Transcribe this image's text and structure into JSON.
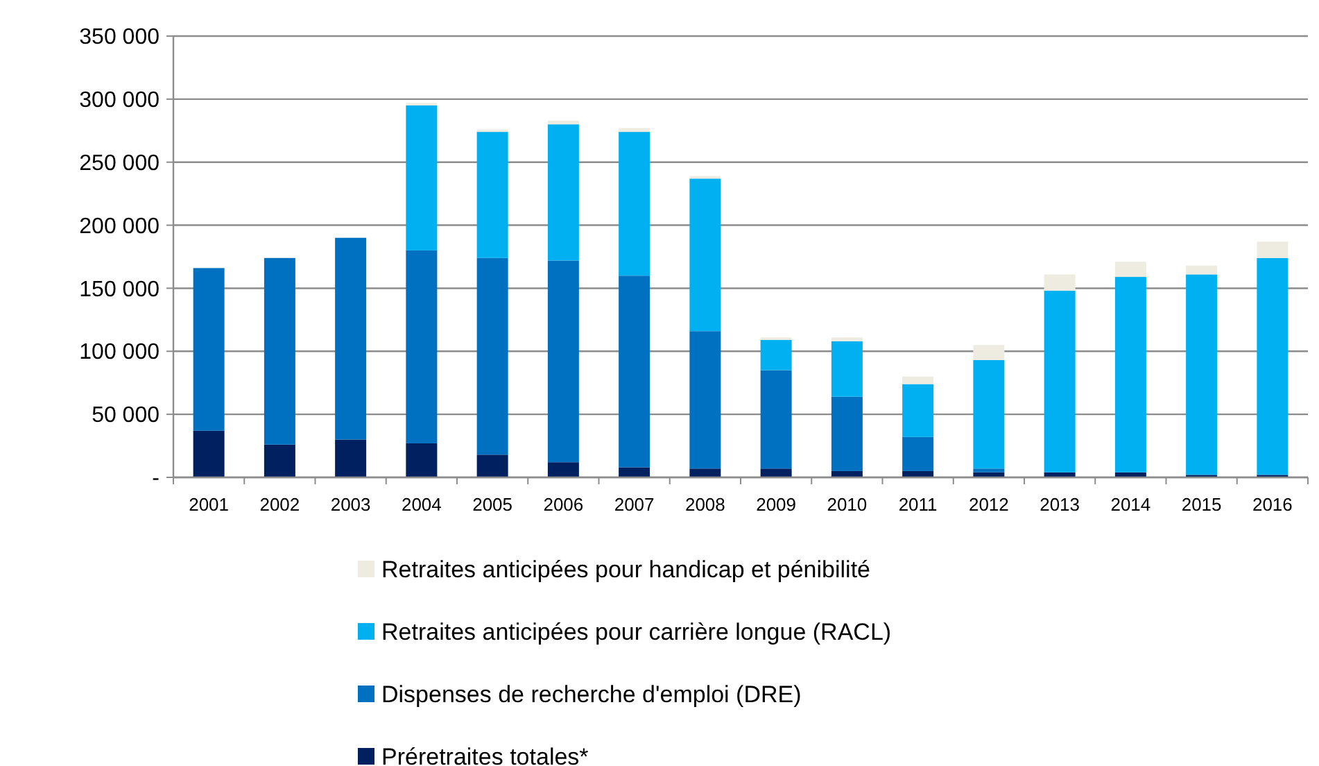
{
  "chart_data": {
    "type": "bar",
    "stacked": true,
    "categories": [
      "2001",
      "2002",
      "2003",
      "2004",
      "2005",
      "2006",
      "2007",
      "2008",
      "2009",
      "2010",
      "2011",
      "2012",
      "2013",
      "2014",
      "2015",
      "2016"
    ],
    "series": [
      {
        "name": "Préretraites totales*",
        "color": "#002060",
        "values": [
          37000,
          26000,
          30000,
          27000,
          18000,
          12000,
          8000,
          7000,
          7000,
          5000,
          5000,
          4000,
          4000,
          4000,
          2000,
          2000
        ]
      },
      {
        "name": "Dispenses de recherche d'emploi (DRE)",
        "color": "#0070c0",
        "values": [
          129000,
          148000,
          160000,
          153000,
          156000,
          160000,
          152000,
          109000,
          78000,
          59000,
          27000,
          3000,
          0,
          0,
          0,
          0
        ]
      },
      {
        "name": "Retraites anticipées pour carrière longue (RACL)",
        "color": "#00b0f0",
        "values": [
          0,
          0,
          0,
          115000,
          100000,
          108000,
          114000,
          121000,
          24000,
          44000,
          42000,
          86000,
          144000,
          155000,
          159000,
          172000
        ]
      },
      {
        "name": "Retraites anticipées pour handicap et pénibilité",
        "color": "#eeece1",
        "values": [
          0,
          0,
          0,
          2000,
          2000,
          3000,
          3000,
          2000,
          2000,
          3000,
          6000,
          12000,
          13000,
          12000,
          7000,
          13000
        ]
      }
    ],
    "ylim": [
      0,
      350000
    ],
    "yticks": [
      {
        "value": 0,
        "label": "-"
      },
      {
        "value": 50000,
        "label": "50 000"
      },
      {
        "value": 100000,
        "label": "100 000"
      },
      {
        "value": 150000,
        "label": "150 000"
      },
      {
        "value": 200000,
        "label": "200 000"
      },
      {
        "value": 250000,
        "label": "250 000"
      },
      {
        "value": 300000,
        "label": "300 000"
      },
      {
        "value": 350000,
        "label": "350 000"
      }
    ],
    "grid": "y",
    "legend": "bottom"
  }
}
